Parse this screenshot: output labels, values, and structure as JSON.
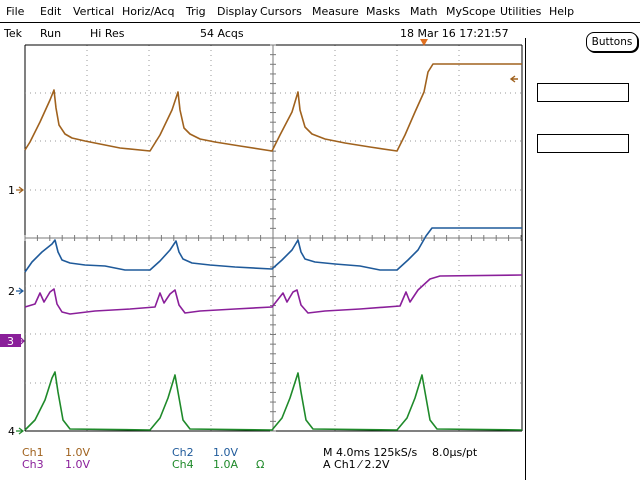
{
  "menu": [
    "File",
    "Edit",
    "Vertical",
    "Horiz/Acq",
    "Trig",
    "Display",
    "Cursors",
    "Measure",
    "Masks",
    "Math",
    "MyScope",
    "Utilities",
    "Help"
  ],
  "status": {
    "brand": "Tek",
    "run_state": "Run",
    "acq_mode": "Hi Res",
    "acq_count": "54 Acqs",
    "datetime": "18 Mar 16 17:21:57"
  },
  "buttons_label": "Buttons",
  "channel_markers": {
    "ch1": "1",
    "ch2": "2",
    "ch3": "3",
    "ch4": "4"
  },
  "readouts": {
    "ch1_label": "Ch1",
    "ch1_scale": "1.0V",
    "ch2_label": "Ch2",
    "ch2_scale": "1.0V",
    "ch3_label": "Ch3",
    "ch3_scale": "1.0V",
    "ch4_label": "Ch4",
    "ch4_scale": "1.0A",
    "ch4_term": "Ω",
    "timebase": "M 4.0ms 125kS/s",
    "sample_interval": "8.0µs/pt",
    "trigger": "A  Ch1  ⁄  2.2V"
  },
  "colors": {
    "ch1": "#a0621e",
    "ch2": "#1f5a9a",
    "ch3": "#8a1f9a",
    "ch4": "#1f8a2a",
    "trigger_marker": "#e07020",
    "grid": "#9a9a9a"
  }
}
